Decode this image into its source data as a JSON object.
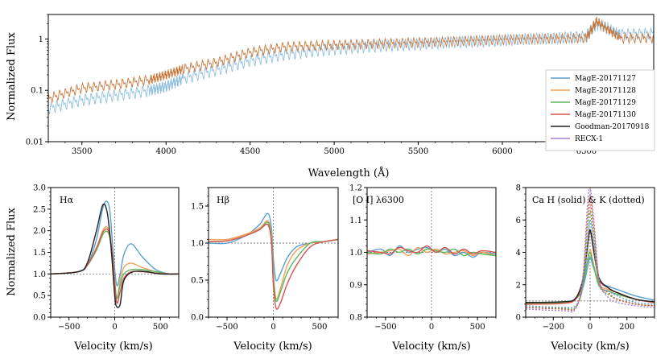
{
  "figure": {
    "title": ""
  },
  "chart_data": [
    {
      "id": "spectrum",
      "type": "line",
      "title": "",
      "xlabel": "Wavelength (Å)",
      "ylabel": "Normalized Flux",
      "xlim": [
        3300,
        6900
      ],
      "ylim": [
        0.01,
        3.0
      ],
      "yscale": "log",
      "xticks": [
        3500,
        4000,
        4500,
        5000,
        5500,
        6000,
        6500
      ],
      "yticks": [
        {
          "v": 0.01,
          "label": "0.01"
        },
        {
          "v": 0.1,
          "label": "0.1"
        },
        {
          "v": 1,
          "label": "1"
        }
      ],
      "legend": {
        "position": "lower-right",
        "entries": [
          {
            "name": "MagE-20171127",
            "color": "#5a9fd0"
          },
          {
            "name": "MagE-20171128",
            "color": "#f0a058"
          },
          {
            "name": "MagE-20171129",
            "color": "#5cb85c"
          },
          {
            "name": "MagE-20171130",
            "color": "#d9534f"
          },
          {
            "name": "Goodman-20170918",
            "color": "#222222"
          },
          {
            "name": "RECX-1",
            "color": "#a57fcf"
          }
        ]
      },
      "series": [
        {
          "name": "MagE-20171127",
          "color": "#8fbfe0",
          "x": [
            3300,
            3500,
            3700,
            3900,
            4000,
            4100,
            4300,
            4500,
            4700,
            4900,
            5100,
            5300,
            5500,
            5700,
            5900,
            6100,
            6300,
            6500,
            6560,
            6700,
            6900
          ],
          "y": [
            0.045,
            0.065,
            0.08,
            0.1,
            0.12,
            0.17,
            0.25,
            0.38,
            0.5,
            0.6,
            0.68,
            0.75,
            0.8,
            0.88,
            0.92,
            1.0,
            1.05,
            1.15,
            2.0,
            1.25,
            1.3
          ]
        },
        {
          "name": "MagE-20171128",
          "color": "#c8773d",
          "x": [
            3300,
            3500,
            3700,
            3900,
            4000,
            4100,
            4300,
            4500,
            4700,
            4900,
            5100,
            5300,
            5500,
            5700,
            5900,
            6100,
            6300,
            6500,
            6560,
            6700,
            6900
          ],
          "y": [
            0.07,
            0.11,
            0.13,
            0.16,
            0.2,
            0.26,
            0.35,
            0.55,
            0.7,
            0.75,
            0.78,
            0.82,
            0.86,
            0.9,
            0.95,
            1.0,
            1.03,
            1.05,
            2.2,
            1.05,
            1.05
          ]
        }
      ]
    },
    {
      "id": "halpha",
      "type": "line",
      "title": "Hα",
      "xlabel": "Velocity (km/s)",
      "ylabel": "Normalized Flux",
      "xlim": [
        -700,
        700
      ],
      "ylim": [
        0.0,
        3.0
      ],
      "xticks": [
        -500,
        0,
        500
      ],
      "yticks": [
        0.0,
        0.5,
        1.0,
        1.5,
        2.0,
        2.5,
        3.0
      ],
      "reference_y": 1.0,
      "series": [
        {
          "name": "MagE-20171127",
          "color": "#5a9fd0",
          "x": [
            -700,
            -400,
            -300,
            -200,
            -120,
            -60,
            -20,
            20,
            60,
            100,
            180,
            300,
            450,
            600,
            700
          ],
          "y": [
            1.0,
            1.05,
            1.2,
            1.8,
            2.6,
            2.55,
            1.6,
            0.75,
            1.0,
            1.45,
            1.7,
            1.4,
            1.1,
            1.0,
            1.0
          ]
        },
        {
          "name": "MagE-20171128",
          "color": "#f0a058",
          "x": [
            -700,
            -400,
            -300,
            -200,
            -120,
            -60,
            -20,
            20,
            60,
            100,
            180,
            300,
            450,
            600,
            700
          ],
          "y": [
            1.0,
            1.05,
            1.2,
            1.6,
            2.05,
            2.0,
            1.35,
            0.45,
            0.85,
            1.15,
            1.25,
            1.15,
            1.05,
            1.0,
            1.0
          ]
        },
        {
          "name": "MagE-20171129",
          "color": "#5cb85c",
          "x": [
            -700,
            -400,
            -300,
            -200,
            -120,
            -60,
            -20,
            20,
            60,
            100,
            180,
            300,
            450,
            600,
            700
          ],
          "y": [
            1.0,
            1.05,
            1.2,
            1.55,
            1.95,
            1.9,
            1.3,
            0.45,
            0.75,
            1.0,
            1.1,
            1.1,
            1.05,
            1.0,
            1.0
          ]
        },
        {
          "name": "MagE-20171130",
          "color": "#d9534f",
          "x": [
            -700,
            -400,
            -300,
            -200,
            -120,
            -60,
            -20,
            20,
            60,
            100,
            180,
            300,
            450,
            600,
            700
          ],
          "y": [
            1.0,
            1.05,
            1.2,
            1.6,
            2.0,
            1.95,
            1.3,
            0.35,
            0.6,
            0.9,
            1.05,
            1.05,
            1.02,
            1.0,
            1.0
          ]
        },
        {
          "name": "Goodman-20170918",
          "color": "#222222",
          "x": [
            -700,
            -400,
            -300,
            -200,
            -130,
            -80,
            -40,
            0,
            20,
            60,
            100,
            200,
            350,
            500,
            700
          ],
          "y": [
            1.0,
            1.05,
            1.25,
            2.0,
            2.6,
            2.4,
            1.6,
            0.5,
            0.25,
            0.3,
            0.85,
            1.05,
            1.05,
            1.0,
            1.0
          ]
        }
      ]
    },
    {
      "id": "hbeta",
      "type": "line",
      "title": "Hβ",
      "xlabel": "Velocity (km/s)",
      "ylabel": "",
      "xlim": [
        -700,
        700
      ],
      "ylim": [
        0.0,
        1.75
      ],
      "xticks": [
        -500,
        0,
        500
      ],
      "yticks": [
        0.0,
        0.5,
        1.0,
        1.5
      ],
      "reference_y": 1.0,
      "series": [
        {
          "name": "MagE-20171127",
          "color": "#5a9fd0",
          "x": [
            -700,
            -500,
            -300,
            -150,
            -60,
            -20,
            0,
            30,
            80,
            150,
            250,
            400,
            550,
            700
          ],
          "y": [
            1.0,
            1.0,
            1.1,
            1.25,
            1.4,
            1.2,
            0.8,
            0.5,
            0.6,
            0.8,
            0.95,
            1.0,
            1.02,
            1.05
          ]
        },
        {
          "name": "MagE-20171128",
          "color": "#f0a058",
          "x": [
            -700,
            -500,
            -300,
            -150,
            -60,
            -20,
            0,
            30,
            80,
            150,
            250,
            400,
            550,
            700
          ],
          "y": [
            1.05,
            1.05,
            1.12,
            1.2,
            1.3,
            1.1,
            0.6,
            0.25,
            0.4,
            0.7,
            0.9,
            1.0,
            1.02,
            1.05
          ]
        },
        {
          "name": "MagE-20171129",
          "color": "#5cb85c",
          "x": [
            -700,
            -500,
            -300,
            -150,
            -60,
            -20,
            0,
            30,
            80,
            150,
            250,
            400,
            550,
            700
          ],
          "y": [
            1.02,
            1.03,
            1.1,
            1.18,
            1.28,
            1.05,
            0.55,
            0.22,
            0.35,
            0.6,
            0.8,
            1.0,
            1.02,
            1.05
          ]
        },
        {
          "name": "MagE-20171130",
          "color": "#d9534f",
          "x": [
            -700,
            -500,
            -300,
            -150,
            -60,
            -20,
            0,
            30,
            80,
            150,
            250,
            400,
            550,
            700
          ],
          "y": [
            1.02,
            1.03,
            1.1,
            1.18,
            1.25,
            1.0,
            0.45,
            0.12,
            0.2,
            0.45,
            0.7,
            0.95,
            1.02,
            1.05
          ]
        }
      ]
    },
    {
      "id": "oi",
      "type": "line",
      "title": "[O I] λ6300",
      "xlabel": "Velocity (km/s)",
      "ylabel": "",
      "xlim": [
        -700,
        700
      ],
      "ylim": [
        0.8,
        1.2
      ],
      "xticks": [
        -500,
        0,
        500
      ],
      "yticks": [
        0.8,
        0.9,
        1.0,
        1.1,
        1.2
      ],
      "reference_y": 1.0,
      "series": [
        {
          "name": "MagE-20171127",
          "color": "#5a9fd0",
          "x": [
            -700,
            -550,
            -450,
            -350,
            -250,
            -150,
            -50,
            50,
            150,
            250,
            350,
            450,
            550,
            700
          ],
          "y": [
            1.0,
            1.01,
            0.99,
            1.02,
            1.0,
            1.01,
            1.015,
            1.0,
            1.01,
            0.99,
            1.0,
            0.985,
            1.0,
            0.995
          ]
        },
        {
          "name": "MagE-20171128",
          "color": "#f0a058",
          "x": [
            -700,
            -550,
            -450,
            -350,
            -250,
            -150,
            -50,
            50,
            150,
            250,
            350,
            450,
            550,
            700
          ],
          "y": [
            0.995,
            1.0,
            1.005,
            1.01,
            0.99,
            1.015,
            1.0,
            1.01,
            0.995,
            1.0,
            1.005,
            0.99,
            1.0,
            0.99
          ]
        },
        {
          "name": "MagE-20171129",
          "color": "#5cb85c",
          "x": [
            -700,
            -550,
            -450,
            -350,
            -250,
            -150,
            -50,
            50,
            150,
            250,
            350,
            450,
            550,
            700
          ],
          "y": [
            1.0,
            0.995,
            1.01,
            1.0,
            1.01,
            0.995,
            1.01,
            1.005,
            1.0,
            1.01,
            0.99,
            1.0,
            0.995,
            0.99
          ]
        },
        {
          "name": "MagE-20171130",
          "color": "#d9534f",
          "x": [
            -700,
            -550,
            -450,
            -350,
            -250,
            -150,
            -50,
            50,
            150,
            250,
            350,
            450,
            550,
            700
          ],
          "y": [
            1.005,
            1.0,
            0.995,
            1.015,
            1.005,
            1.0,
            1.02,
            1.0,
            1.015,
            0.995,
            1.01,
            0.995,
            1.005,
            1.0
          ]
        }
      ]
    },
    {
      "id": "cahk",
      "type": "line",
      "title": "Ca H (solid) & K (dotted)",
      "xlabel": "Velocity (km/s)",
      "ylabel": "",
      "xlim": [
        -350,
        350
      ],
      "ylim": [
        0,
        8
      ],
      "xticks": [
        -200,
        0,
        200
      ],
      "yticks": [
        0,
        2,
        4,
        6,
        8
      ],
      "reference_y": 1.0,
      "series": [
        {
          "name": "MagE-20171127 H",
          "color": "#5a9fd0",
          "dash": false,
          "x": [
            -350,
            -150,
            -80,
            -40,
            -15,
            0,
            20,
            50,
            100,
            150,
            250,
            350
          ],
          "y": [
            0.9,
            0.95,
            1.1,
            1.8,
            3.0,
            3.7,
            3.0,
            2.2,
            1.9,
            1.7,
            1.3,
            1.05
          ]
        },
        {
          "name": "MagE-20171128 H",
          "color": "#f0a058",
          "dash": false,
          "x": [
            -350,
            -150,
            -80,
            -40,
            -15,
            0,
            20,
            50,
            100,
            150,
            250,
            350
          ],
          "y": [
            0.8,
            0.85,
            1.1,
            2.0,
            3.5,
            4.2,
            3.2,
            2.0,
            1.7,
            1.5,
            1.1,
            0.9
          ]
        },
        {
          "name": "MagE-20171129 H",
          "color": "#5cb85c",
          "dash": false,
          "x": [
            -350,
            -150,
            -80,
            -40,
            -15,
            0,
            20,
            50,
            100,
            150,
            250,
            350
          ],
          "y": [
            0.85,
            0.9,
            1.1,
            1.9,
            3.4,
            4.0,
            3.1,
            1.9,
            1.6,
            1.4,
            1.1,
            0.9
          ]
        },
        {
          "name": "MagE-20171130 H",
          "color": "#d9534f",
          "dash": false,
          "x": [
            -350,
            -150,
            -80,
            -40,
            -15,
            0,
            20,
            50,
            100,
            150,
            250,
            350
          ],
          "y": [
            0.8,
            0.85,
            1.1,
            2.2,
            4.2,
            5.3,
            4.0,
            2.3,
            1.8,
            1.5,
            1.1,
            0.9
          ]
        },
        {
          "name": "Goodman-20170918 H",
          "color": "#222222",
          "dash": false,
          "x": [
            -350,
            -150,
            -80,
            -40,
            -15,
            0,
            20,
            50,
            100,
            150,
            250,
            350
          ],
          "y": [
            0.9,
            0.95,
            1.15,
            2.3,
            4.3,
            5.4,
            4.1,
            2.4,
            1.8,
            1.5,
            1.1,
            0.95
          ]
        },
        {
          "name": "MagE-20171127 K",
          "color": "#5a9fd0",
          "dash": true,
          "x": [
            -350,
            -150,
            -80,
            -40,
            -15,
            0,
            20,
            50,
            100,
            150,
            250,
            350
          ],
          "y": [
            0.7,
            0.6,
            0.7,
            1.8,
            4.5,
            6.0,
            4.5,
            2.0,
            1.6,
            1.3,
            0.9,
            0.8
          ]
        },
        {
          "name": "MagE-20171128 K",
          "color": "#f0a058",
          "dash": true,
          "x": [
            -350,
            -150,
            -80,
            -40,
            -15,
            0,
            20,
            50,
            100,
            150,
            250,
            350
          ],
          "y": [
            0.6,
            0.5,
            0.6,
            2.0,
            5.5,
            7.0,
            5.0,
            2.0,
            1.4,
            1.1,
            0.8,
            0.7
          ]
        },
        {
          "name": "MagE-20171129 K",
          "color": "#5cb85c",
          "dash": true,
          "x": [
            -350,
            -150,
            -80,
            -40,
            -15,
            0,
            20,
            50,
            100,
            150,
            250,
            350
          ],
          "y": [
            0.6,
            0.55,
            0.6,
            1.9,
            5.2,
            6.5,
            4.8,
            2.0,
            1.4,
            1.1,
            0.8,
            0.7
          ]
        },
        {
          "name": "MagE-20171130 K",
          "color": "#d9534f",
          "dash": true,
          "x": [
            -350,
            -150,
            -80,
            -40,
            -15,
            0,
            20,
            50,
            100,
            150,
            250,
            350
          ],
          "y": [
            0.6,
            0.5,
            0.55,
            2.2,
            6.0,
            7.5,
            5.5,
            2.2,
            1.5,
            1.1,
            0.8,
            0.7
          ]
        },
        {
          "name": "RECX-1 K",
          "color": "#a57fcf",
          "dash": true,
          "x": [
            -350,
            -150,
            -80,
            -40,
            -15,
            0,
            20,
            50,
            100,
            150,
            250,
            350
          ],
          "y": [
            0.5,
            0.4,
            0.5,
            2.5,
            6.8,
            8.0,
            6.0,
            2.3,
            1.2,
            0.9,
            0.7,
            0.6
          ]
        }
      ]
    }
  ]
}
